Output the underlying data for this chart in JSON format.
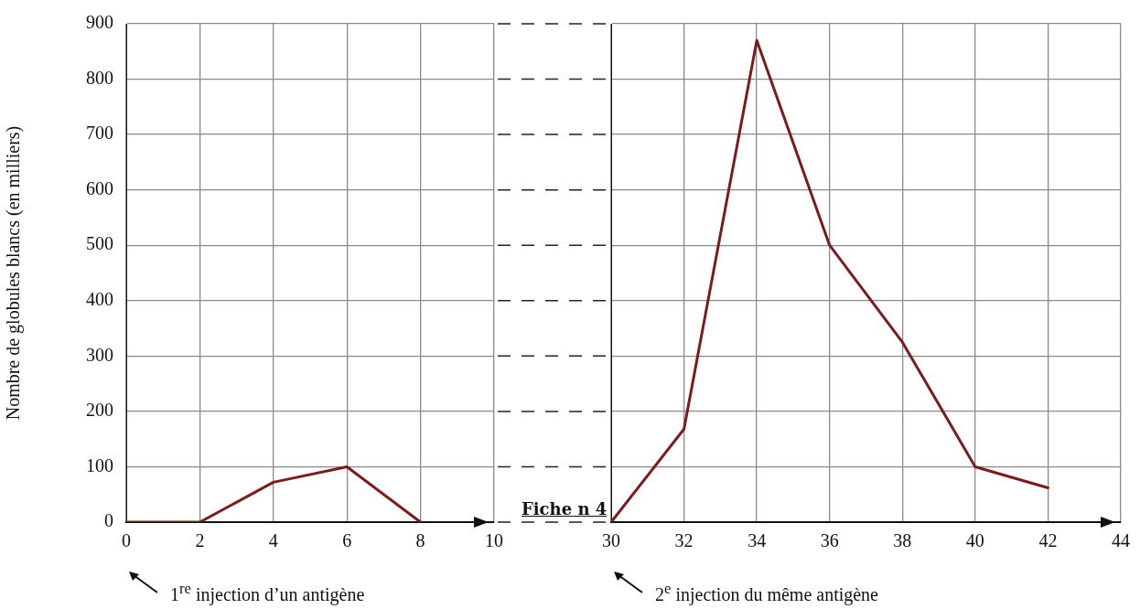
{
  "chart_data": [
    {
      "type": "line",
      "ylabel": "Nombre de globules blancs (en milliers)",
      "x": [
        0,
        2,
        4,
        6,
        8
      ],
      "series": [
        {
          "color": "#7a1c1c",
          "values": [
            0,
            0,
            72,
            100,
            0
          ]
        }
      ],
      "xlim": [
        0,
        10
      ],
      "xticks": [
        0,
        2,
        4,
        6,
        8,
        10
      ],
      "ylim": [
        0,
        900
      ],
      "yticks": [
        0,
        100,
        200,
        300,
        400,
        500,
        600,
        700,
        800,
        900
      ],
      "grid": true,
      "marker": "none",
      "line_style": "solid",
      "annotations": [
        "1$^{re}$ injection d’un antigène"
      ]
    },
    {
      "type": "line",
      "x": [
        30,
        32,
        34,
        36,
        38,
        40,
        42
      ],
      "series": [
        {
          "color": "#7a1c1c",
          "values": [
            0,
            168,
            870,
            500,
            325,
            100,
            62
          ]
        }
      ],
      "xlim": [
        30,
        44
      ],
      "xticks": [
        30,
        32,
        34,
        36,
        38,
        40,
        42,
        44
      ],
      "ylim": [
        0,
        900
      ],
      "yticks": [
        0,
        100,
        200,
        300,
        400,
        500,
        600,
        700,
        800,
        900
      ],
      "grid": true,
      "marker": "none",
      "line_style": "solid",
      "tick_labels": "x",
      "annotations": [
        "Fiche n 4",
        "2$^{e}$ injection du même antigène"
      ]
    }
  ]
}
